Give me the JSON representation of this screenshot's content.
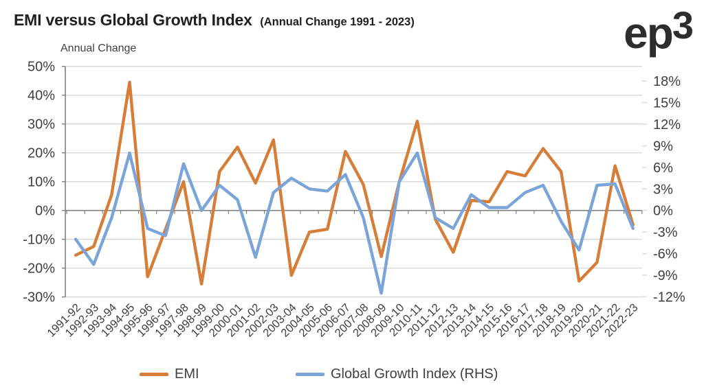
{
  "header": {
    "title": "EMI versus Global Growth Index",
    "subtitle": "(Annual Change 1991 - 2023)",
    "logo_main": "ep",
    "logo_sup": "3"
  },
  "chart_data": {
    "type": "line",
    "title": "EMI versus Global Growth Index (Annual Change 1991 - 2023)",
    "axis_area_label": "Annual Change",
    "grid": true,
    "legend_position": "bottom",
    "categories": [
      "1991-92",
      "1992-93",
      "1993-94",
      "1994-95",
      "1995-96",
      "1996-97",
      "1997-98",
      "1998-99",
      "1999-00",
      "2000-01",
      "2001-02",
      "2002-03",
      "2003-04",
      "2004-05",
      "2005-06",
      "2006-07",
      "2007-08",
      "2008-09",
      "2009-10",
      "2010-11",
      "2011-12",
      "2012-13",
      "2013-14",
      "2014-15",
      "2015-16",
      "2016-17",
      "2017-18",
      "2018-19",
      "2019-20",
      "2020-21",
      "2021-22",
      "2022-23"
    ],
    "series": [
      {
        "name": "EMI",
        "axis": "left",
        "color": "#D67D38",
        "values": [
          -15.5,
          -12.5,
          5.5,
          44.5,
          -23,
          -6.5,
          10,
          -25.5,
          13.5,
          22,
          9.5,
          24.5,
          -22.5,
          -7.5,
          -6.5,
          20.5,
          9,
          -16,
          10,
          31,
          -3,
          -14.5,
          3.5,
          3,
          13.5,
          12,
          21.5,
          13.5,
          -24.5,
          -18,
          15.5,
          -5
        ]
      },
      {
        "name": "Global Growth Index (RHS)",
        "axis": "right",
        "color": "#7BA4D9",
        "values": [
          -4,
          -7.5,
          -1,
          8,
          -2.5,
          -3.5,
          6.5,
          0,
          3.5,
          1.5,
          -6.5,
          2.5,
          4.5,
          3,
          2.7,
          5,
          -1,
          -11.5,
          4,
          8,
          -1,
          -2.5,
          2.2,
          0.4,
          0.4,
          2.5,
          3.5,
          -1.5,
          -5.5,
          3.5,
          3.7,
          -2.5
        ]
      }
    ],
    "left_axis": {
      "range": [
        -30,
        50
      ],
      "tick_values": [
        50,
        40,
        30,
        20,
        10,
        0,
        -10,
        -20,
        -30
      ],
      "tick_labels": [
        "50%",
        "40%",
        "30%",
        "20%",
        "10%",
        "0%",
        "-10%",
        "-20%",
        "-30%"
      ],
      "format": "percent"
    },
    "right_axis": {
      "range": [
        -12,
        20
      ],
      "tick_values": [
        18,
        15,
        12,
        9,
        6,
        3,
        0,
        -3,
        -6,
        -9,
        -12
      ],
      "tick_labels": [
        "18%",
        "15%",
        "12%",
        "9%",
        "6%",
        "3%",
        "0%",
        "-3%",
        "-6%",
        "-9%",
        "-12%"
      ],
      "format": "percent"
    },
    "colors": {
      "gridline": "#D9D9D9",
      "axis_line": "#7F7F7F",
      "tick_label": "#404040"
    }
  },
  "legend": {
    "items": [
      {
        "label": "EMI",
        "color": "#D67D38"
      },
      {
        "label": "Global Growth Index (RHS)",
        "color": "#7BA4D9"
      }
    ]
  }
}
